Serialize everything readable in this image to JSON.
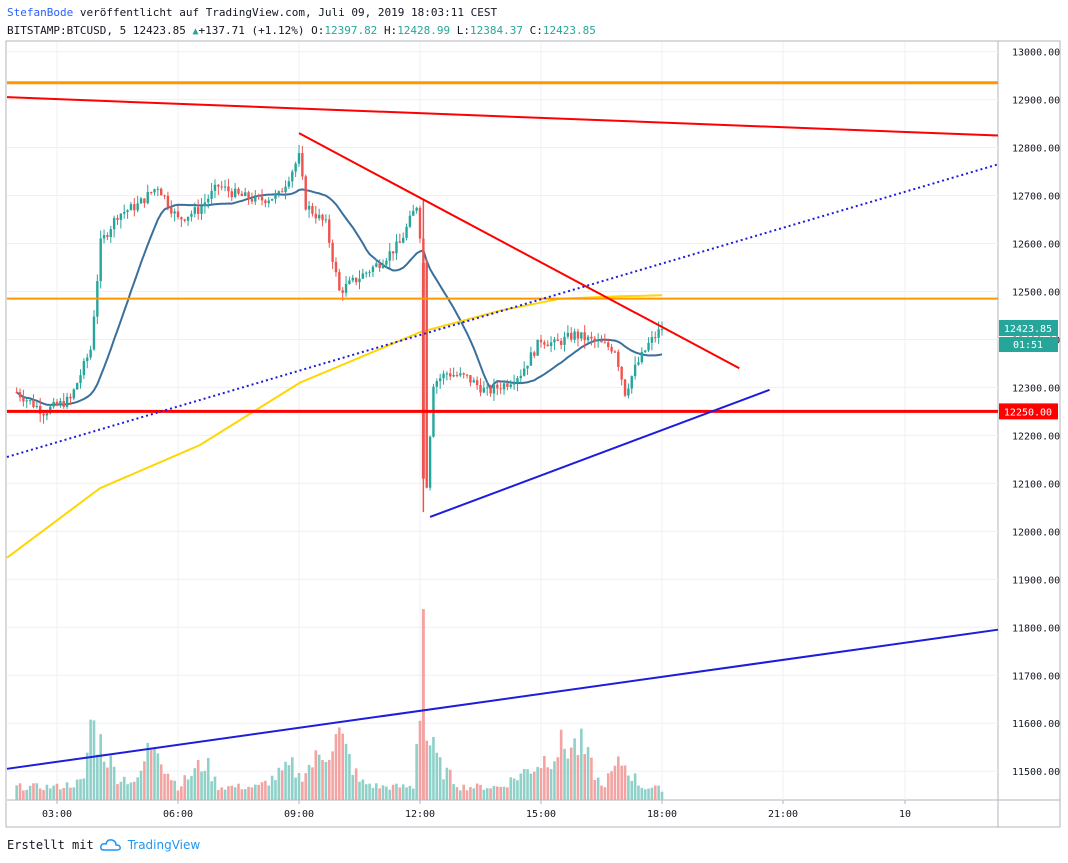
{
  "header": {
    "author": "StefanBode",
    "published_text": "veröffentlicht auf TradingView.com, Juli 09, 2019 18:03:11 CEST",
    "symbol": "BITSTAMP:BTCUSD, 5",
    "last": "12423.85",
    "change": "+137.71 (+1.12%)",
    "o_label": "O:",
    "o_value": "12397.82",
    "h_label": "H:",
    "h_value": "12428.99",
    "l_label": "L:",
    "l_value": "12384.37",
    "c_label": "C:",
    "c_value": "12423.85"
  },
  "footer": {
    "created": "Erstellt mit",
    "brand": "TradingView"
  },
  "colors": {
    "up": "#26a69a",
    "down": "#ef5350",
    "up_vol": "#8fd1c8",
    "down_vol": "#f4a3a3",
    "orange": "#ff9800",
    "red": "#ff0000",
    "blue": "#1d1ddb",
    "yellow": "#ffd600",
    "ma": "#3b6f9c",
    "grid": "#eef0f3"
  },
  "chart_data": {
    "type": "candlestick",
    "x_ticks": [
      "03:00",
      "06:00",
      "09:00",
      "12:00",
      "15:00",
      "18:00",
      "21:00",
      "10"
    ],
    "y_ticks": [
      "13000.00",
      "12900.00",
      "12800.00",
      "12700.00",
      "12600.00",
      "12500.00",
      "12400.00",
      "12300.00",
      "12200.00",
      "12100.00",
      "12000.00",
      "11900.00",
      "11800.00",
      "11700.00",
      "11600.00",
      "11500.00"
    ],
    "ylim": [
      11440,
      13020
    ],
    "price_label": "12423.85",
    "countdown": "01:51",
    "level_label": "12250.00",
    "close_path": [
      [
        "02:00",
        12290
      ],
      [
        "02:40",
        12250
      ],
      [
        "03:20",
        12275
      ],
      [
        "03:50",
        12380
      ],
      [
        "04:05",
        12600
      ],
      [
        "04:30",
        12660
      ],
      [
        "05:00",
        12680
      ],
      [
        "05:30",
        12720
      ],
      [
        "06:00",
        12650
      ],
      [
        "06:30",
        12670
      ],
      [
        "07:00",
        12720
      ],
      [
        "07:30",
        12700
      ],
      [
        "08:00",
        12690
      ],
      [
        "08:30",
        12700
      ],
      [
        "09:00",
        12780
      ],
      [
        "09:10",
        12680
      ],
      [
        "09:40",
        12640
      ],
      [
        "10:00",
        12500
      ],
      [
        "10:30",
        12530
      ],
      [
        "11:00",
        12560
      ],
      [
        "11:30",
        12600
      ],
      [
        "11:55",
        12680
      ],
      [
        "12:05",
        12560
      ],
      [
        "12:10",
        12100
      ],
      [
        "12:20",
        12310
      ],
      [
        "12:40",
        12330
      ],
      [
        "13:10",
        12320
      ],
      [
        "13:40",
        12290
      ],
      [
        "14:10",
        12310
      ],
      [
        "14:30",
        12330
      ],
      [
        "15:00",
        12400
      ],
      [
        "15:20",
        12390
      ],
      [
        "15:50",
        12410
      ],
      [
        "16:20",
        12395
      ],
      [
        "16:50",
        12380
      ],
      [
        "17:05",
        12290
      ],
      [
        "17:20",
        12340
      ],
      [
        "17:40",
        12390
      ],
      [
        "18:00",
        12424
      ]
    ],
    "volume_profile": [
      [
        "02:00",
        0.1
      ],
      [
        "03:00",
        0.1
      ],
      [
        "03:40",
        0.15
      ],
      [
        "03:50",
        0.75
      ],
      [
        "04:00",
        0.6
      ],
      [
        "04:30",
        0.2
      ],
      [
        "05:00",
        0.15
      ],
      [
        "05:20",
        0.55
      ],
      [
        "05:30",
        0.6
      ],
      [
        "05:40",
        0.3
      ],
      [
        "06:00",
        0.1
      ],
      [
        "06:40",
        0.35
      ],
      [
        "07:00",
        0.1
      ],
      [
        "08:00",
        0.1
      ],
      [
        "08:50",
        0.3
      ],
      [
        "09:00",
        0.2
      ],
      [
        "10:00",
        0.6
      ],
      [
        "10:30",
        0.15
      ],
      [
        "11:00",
        0.1
      ],
      [
        "11:50",
        0.1
      ],
      [
        "12:00",
        1.0
      ],
      [
        "12:10",
        0.6
      ],
      [
        "12:30",
        0.3
      ],
      [
        "13:00",
        0.1
      ],
      [
        "14:00",
        0.1
      ],
      [
        "15:00",
        0.35
      ],
      [
        "15:30",
        0.5
      ],
      [
        "16:00",
        0.5
      ],
      [
        "16:30",
        0.1
      ],
      [
        "17:00",
        0.35
      ],
      [
        "17:30",
        0.1
      ],
      [
        "18:00",
        0.08
      ]
    ],
    "lines": [
      {
        "name": "orange-resistance-upper",
        "type": "horizontal",
        "price": 12935,
        "color": "#ff9800",
        "width": 3
      },
      {
        "name": "orange-level-middle",
        "type": "horizontal",
        "price": 12485,
        "color": "#ff9800",
        "width": 2
      },
      {
        "name": "red-support",
        "type": "horizontal",
        "price": 12250,
        "color": "#ff0000",
        "width": 3
      },
      {
        "name": "red-downtrend-long",
        "from": [
          "01:60",
          12905
        ],
        "to": [
          "23:45",
          12825
        ],
        "color": "#ff0000",
        "width": 2
      },
      {
        "name": "red-triangle-upper",
        "from": [
          "09:00",
          12830
        ],
        "to": [
          "19:55",
          12340
        ],
        "color": "#ff0000",
        "width": 2
      },
      {
        "name": "blue-triangle-lower",
        "from": [
          "12:15",
          12030
        ],
        "to": [
          "20:40",
          12295
        ],
        "color": "#1d1ddb",
        "width": 2
      },
      {
        "name": "blue-dotted-uptrend",
        "from": [
          "01:60",
          12155
        ],
        "to": [
          "23:45",
          12765
        ],
        "color": "#1d1ddb",
        "width": 2,
        "dash": "2,3"
      },
      {
        "name": "blue-volume-trend",
        "from": [
          "01:60",
          11505
        ],
        "to": [
          "23:45",
          11795
        ],
        "color": "#1d1ddb",
        "width": 2
      }
    ]
  }
}
